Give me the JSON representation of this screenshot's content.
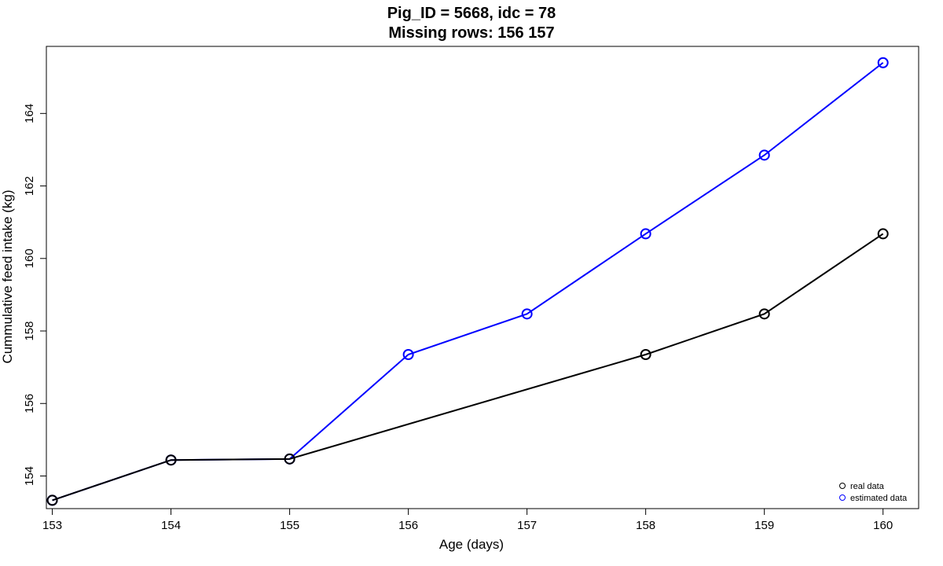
{
  "chart_data": {
    "type": "line",
    "title": "Pig_ID = 5668, idc = 78",
    "subtitle": "Missing rows: 156 157",
    "xlabel": "Age (days)",
    "ylabel": "Cummulative feed intake (kg)",
    "x_ticks": [
      "153",
      "154",
      "155",
      "156",
      "157",
      "158",
      "159",
      "160"
    ],
    "y_ticks": [
      "154",
      "156",
      "158",
      "160",
      "162",
      "164"
    ],
    "xlim": [
      152.95,
      160.3
    ],
    "ylim": [
      153.1,
      165.85
    ],
    "grid": false,
    "legend_position": "bottom-right",
    "series": [
      {
        "name": "estimated data",
        "color": "#0000ff",
        "points": [
          {
            "x": 153,
            "y": 153.33
          },
          {
            "x": 154,
            "y": 154.44
          },
          {
            "x": 155,
            "y": 154.47
          },
          {
            "x": 156,
            "y": 157.35
          },
          {
            "x": 157,
            "y": 158.47
          },
          {
            "x": 158,
            "y": 160.68
          },
          {
            "x": 159,
            "y": 162.85
          },
          {
            "x": 160,
            "y": 165.4
          }
        ]
      },
      {
        "name": "real data",
        "color": "#000000",
        "points": [
          {
            "x": 153,
            "y": 153.33
          },
          {
            "x": 154,
            "y": 154.44
          },
          {
            "x": 155,
            "y": 154.47
          },
          {
            "x": 158,
            "y": 157.35
          },
          {
            "x": 159,
            "y": 158.47
          },
          {
            "x": 160,
            "y": 160.68
          }
        ]
      }
    ],
    "legend": [
      {
        "label": "real data",
        "color": "#000000"
      },
      {
        "label": "estimated data",
        "color": "#0000ff"
      }
    ]
  }
}
